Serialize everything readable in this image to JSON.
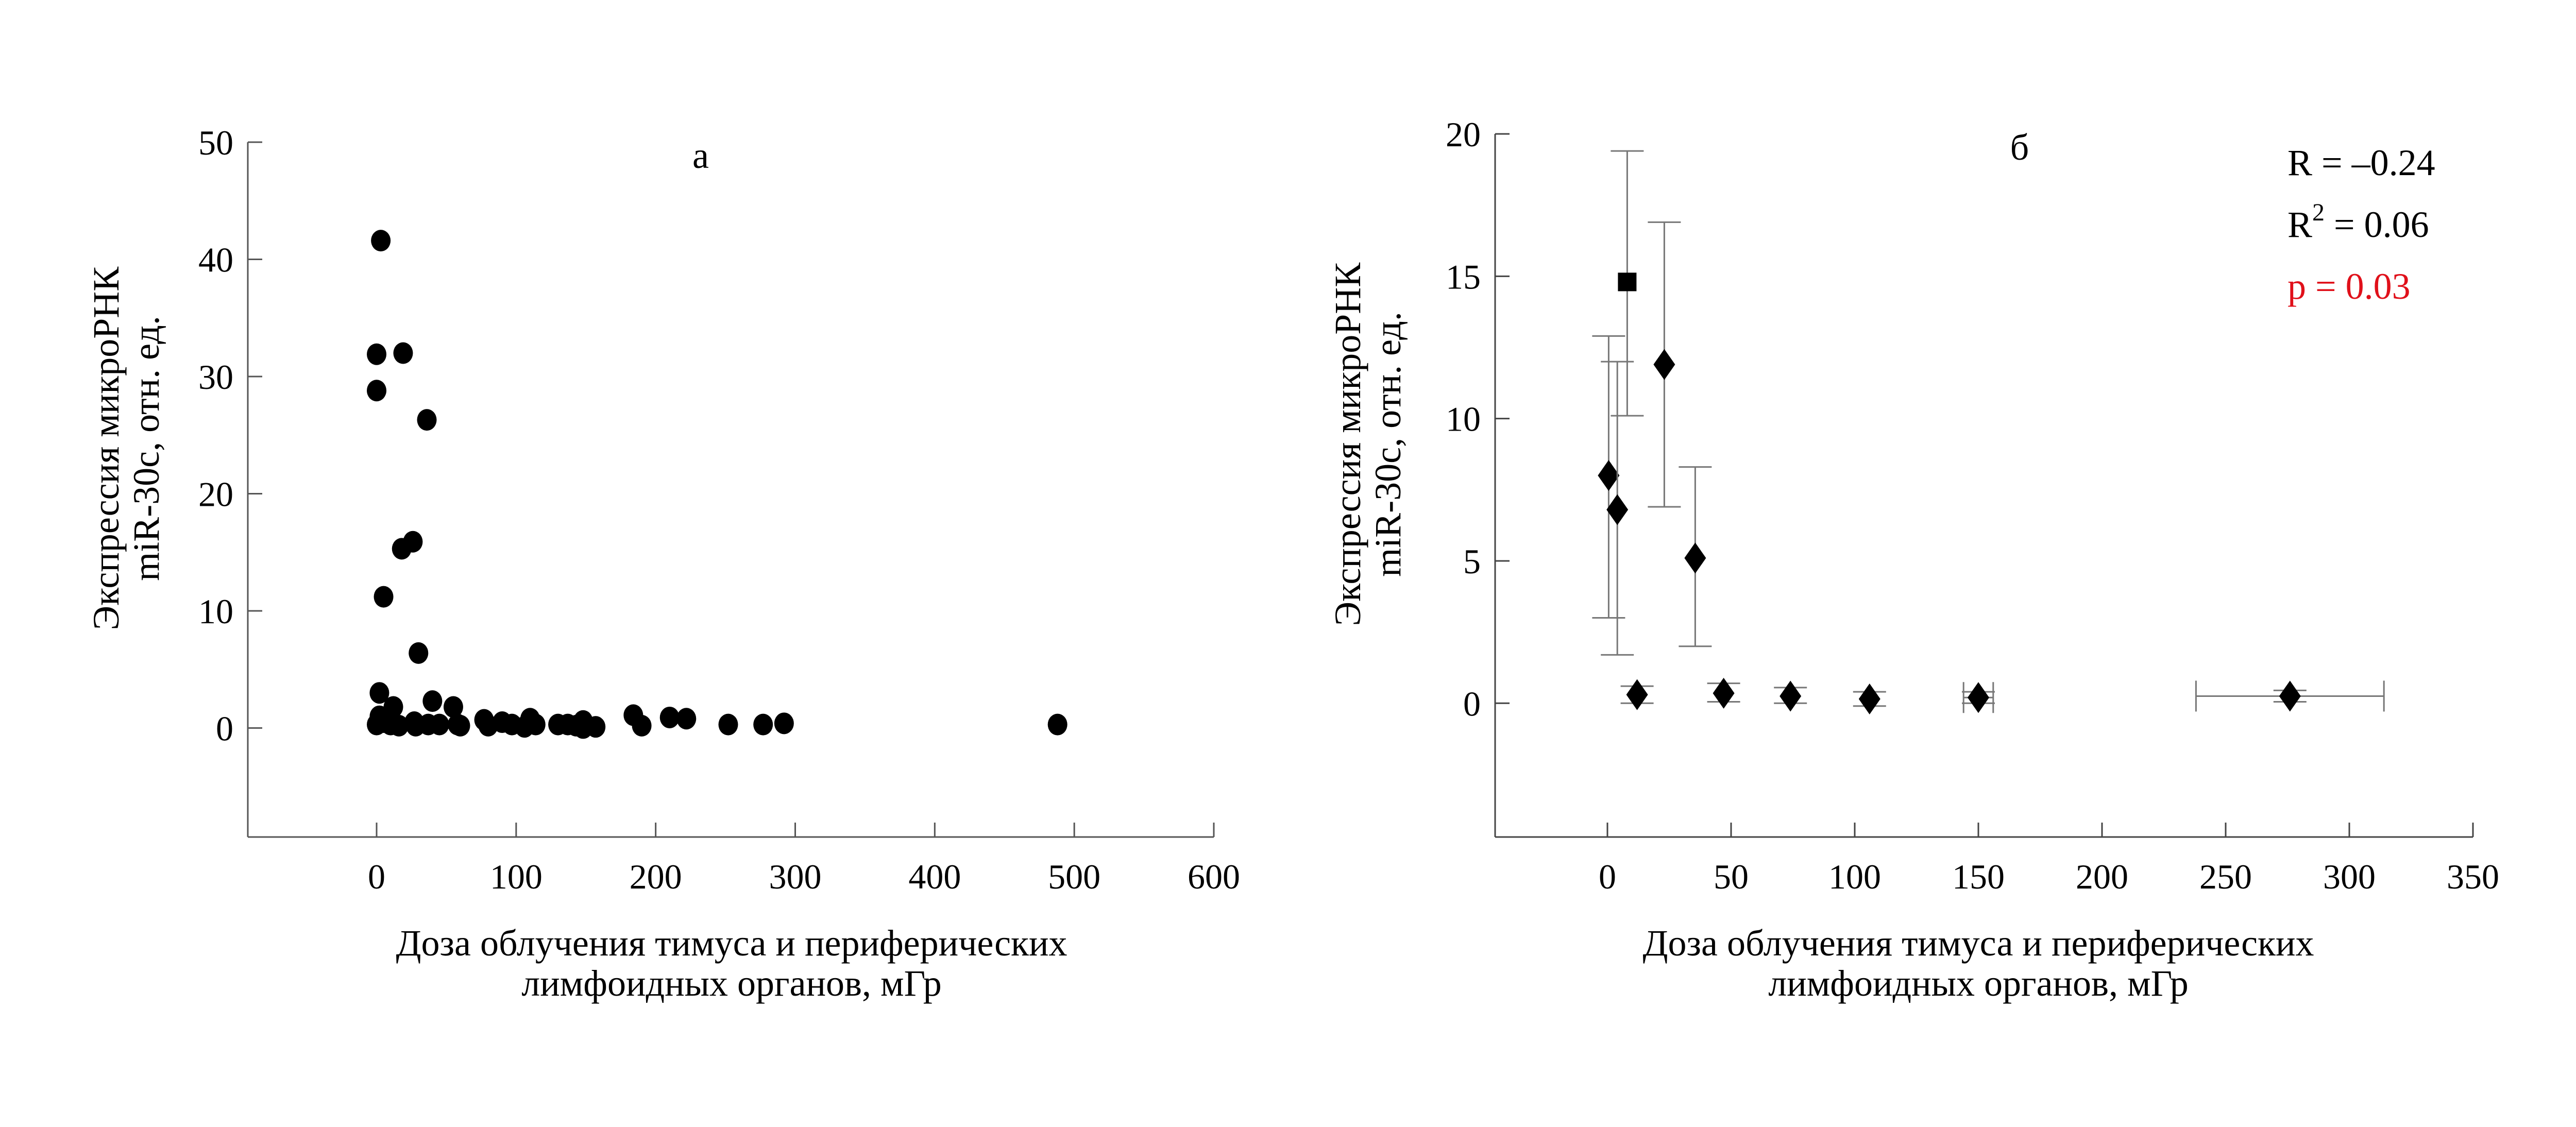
{
  "chart_data": [
    {
      "type": "scatter",
      "title": "а",
      "xlabel": [
        "Доза облучения тимуса и периферических",
        "лимфоидных органов, мГр"
      ],
      "ylabel": [
        "Экспрессия микроРНК",
        "miR-30c, отн. ед."
      ],
      "xlim": [
        -92,
        600
      ],
      "ylim": [
        -9.3,
        50
      ],
      "xticks": [
        0,
        100,
        200,
        300,
        400,
        500,
        600
      ],
      "yticks": [
        0,
        10,
        20,
        30,
        40,
        50
      ],
      "grid": false,
      "marker": "circle",
      "points": [
        [
          3,
          41.6
        ],
        [
          0,
          31.9
        ],
        [
          19,
          32
        ],
        [
          0,
          28.8
        ],
        [
          36,
          26.3
        ],
        [
          18,
          15.3
        ],
        [
          26,
          15.9
        ],
        [
          5,
          11.2
        ],
        [
          30,
          6.4
        ],
        [
          2,
          3
        ],
        [
          12,
          1.8
        ],
        [
          40,
          2.3
        ],
        [
          55,
          1.8
        ],
        [
          2,
          1
        ],
        [
          0,
          0.3
        ],
        [
          5,
          0.5
        ],
        [
          10,
          0.3
        ],
        [
          16,
          0.2
        ],
        [
          27,
          0.5
        ],
        [
          28,
          0.2
        ],
        [
          37,
          0.3
        ],
        [
          45,
          0.3
        ],
        [
          58,
          0.3
        ],
        [
          60,
          0.2
        ],
        [
          77,
          0.7
        ],
        [
          80,
          0.2
        ],
        [
          90,
          0.5
        ],
        [
          97,
          0.3
        ],
        [
          106,
          0.1
        ],
        [
          110,
          0.8
        ],
        [
          114,
          0.3
        ],
        [
          130,
          0.3
        ],
        [
          137,
          0.3
        ],
        [
          143,
          0.2
        ],
        [
          148,
          0.6
        ],
        [
          148,
          0
        ],
        [
          157,
          0.1
        ],
        [
          184,
          1.1
        ],
        [
          190,
          0.2
        ],
        [
          210,
          0.9
        ],
        [
          222,
          0.8
        ],
        [
          252,
          0.3
        ],
        [
          277,
          0.3
        ],
        [
          292,
          0.4
        ],
        [
          488,
          0.3
        ]
      ]
    },
    {
      "type": "scatter",
      "title": "б",
      "xlabel": [
        "Доза облучения тимуса и периферических",
        "лимфоидных органов, мГр"
      ],
      "ylabel": [
        "Экспрессия микроРНК",
        "miR-30c, отн. ед."
      ],
      "xlim": [
        -45,
        350
      ],
      "ylim": [
        -4.7,
        20
      ],
      "xticks": [
        0,
        50,
        100,
        150,
        200,
        250,
        300,
        350
      ],
      "yticks": [
        0,
        5,
        10,
        15,
        20
      ],
      "grid": false,
      "annotations": [
        {
          "text": "R = –0.24",
          "color": "#000000"
        },
        {
          "text": "R",
          "sup": "2",
          "rest": " = 0.06",
          "color": "#000000"
        },
        {
          "text": "p = 0.03",
          "color": "#e0101a"
        }
      ],
      "points": [
        {
          "x": 0.5,
          "y": 8.0,
          "ylo": 3.0,
          "yhi": 12.9,
          "marker": "diamond"
        },
        {
          "x": 4,
          "y": 6.8,
          "ylo": 1.7,
          "yhi": 12.0,
          "marker": "diamond"
        },
        {
          "x": 8,
          "y": 14.8,
          "ylo": 10.1,
          "yhi": 19.4,
          "marker": "square"
        },
        {
          "x": 23,
          "y": 11.9,
          "ylo": 6.9,
          "yhi": 16.9,
          "marker": "diamond"
        },
        {
          "x": 35.5,
          "y": 5.1,
          "ylo": 2.0,
          "yhi": 8.3,
          "marker": "diamond"
        },
        {
          "x": 12,
          "y": 0.3,
          "ylo": 0,
          "yhi": 0.6,
          "marker": "diamond"
        },
        {
          "x": 47,
          "y": 0.35,
          "ylo": 0.05,
          "yhi": 0.7,
          "marker": "diamond"
        },
        {
          "x": 74,
          "y": 0.25,
          "ylo": 0,
          "yhi": 0.55,
          "marker": "diamond"
        },
        {
          "x": 106,
          "y": 0.15,
          "ylo": -0.1,
          "yhi": 0.4,
          "marker": "diamond"
        },
        {
          "x": 150,
          "y": 0.2,
          "ylo": 0,
          "yhi": 0.4,
          "xlo": 144,
          "xhi": 156,
          "marker": "diamond"
        },
        {
          "x": 276,
          "y": 0.25,
          "ylo": 0.05,
          "yhi": 0.45,
          "xlo": 238,
          "xhi": 314,
          "marker": "diamond"
        }
      ]
    }
  ]
}
